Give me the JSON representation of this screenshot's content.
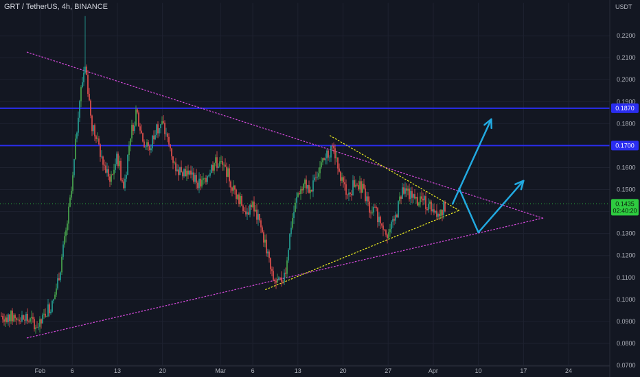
{
  "header": {
    "symbol_title": "GRT / TetherUS, 4h, BINANCE",
    "price_unit": "USDT"
  },
  "colors": {
    "background": "#131722",
    "grid": "#1e2230",
    "axis_text": "#b2b5be",
    "bull": "#26a69a",
    "bull_bright": "#4caf50",
    "bear": "#ef5350",
    "horizontal_line": "#2a2df0",
    "triangle_dots": "#d048d6",
    "wedge_dots": "#e6e620",
    "projection_arrow": "#22a9e0",
    "price_badge": "#2ecc40"
  },
  "chart_data": {
    "type": "candlestick",
    "title": "GRT / TetherUS, 4h, BINANCE",
    "ylabel": "USDT",
    "ylim": [
      0.07,
      0.235
    ],
    "y_ticks": [
      "0.0700",
      "0.0800",
      "0.0900",
      "0.1000",
      "0.1100",
      "0.1200",
      "0.1300",
      "0.1400",
      "0.1500",
      "0.1600",
      "0.1700",
      "0.1800",
      "0.1900",
      "0.2000",
      "0.2100",
      "0.2200"
    ],
    "x_tick_labels": [
      "Feb",
      "6",
      "13",
      "20",
      "Mar",
      "6",
      "13",
      "20",
      "27",
      "Apr",
      "10",
      "17",
      "24"
    ],
    "horizontal_levels": [
      {
        "value": 0.187,
        "label": "0.1870"
      },
      {
        "value": 0.17,
        "label": "0.1700"
      }
    ],
    "current_price": {
      "value": 0.1435,
      "label": "0.1435",
      "countdown": "02:40:20"
    },
    "path_points": [
      [
        "Jan 26",
        0.0925
      ],
      [
        "Jan 29",
        0.0915
      ],
      [
        "Jan 31",
        0.0895
      ],
      [
        "Feb 1",
        0.088
      ],
      [
        "Feb 2",
        0.095
      ],
      [
        "Feb 3",
        0.098
      ],
      [
        "Feb 4",
        0.112
      ],
      [
        "Feb 5",
        0.13
      ],
      [
        "Feb 6",
        0.152
      ],
      [
        "Feb 7",
        0.188
      ],
      [
        "Feb 8",
        0.208
      ],
      [
        "Feb 9",
        0.18
      ],
      [
        "Feb 10",
        0.17
      ],
      [
        "Feb 11",
        0.16
      ],
      [
        "Feb 12",
        0.155
      ],
      [
        "Feb 13",
        0.165
      ],
      [
        "Feb 14",
        0.15
      ],
      [
        "Feb 15",
        0.175
      ],
      [
        "Feb 16",
        0.185
      ],
      [
        "Feb 17",
        0.172
      ],
      [
        "Feb 18",
        0.168
      ],
      [
        "Feb 19",
        0.178
      ],
      [
        "Feb 20",
        0.18
      ],
      [
        "Feb 21",
        0.17
      ],
      [
        "Feb 22",
        0.16
      ],
      [
        "Feb 24",
        0.158
      ],
      [
        "Feb 26",
        0.152
      ],
      [
        "Feb 28",
        0.162
      ],
      [
        "Mar 1",
        0.162
      ],
      [
        "Mar 2",
        0.158
      ],
      [
        "Mar 3",
        0.15
      ],
      [
        "Mar 4",
        0.145
      ],
      [
        "Mar 5",
        0.14
      ],
      [
        "Mar 6",
        0.142
      ],
      [
        "Mar 7",
        0.135
      ],
      [
        "Mar 8",
        0.125
      ],
      [
        "Mar 9",
        0.11
      ],
      [
        "Mar 10",
        0.107
      ],
      [
        "Mar 11",
        0.112
      ],
      [
        "Mar 12",
        0.135
      ],
      [
        "Mar 13",
        0.148
      ],
      [
        "Mar 14",
        0.155
      ],
      [
        "Mar 15",
        0.148
      ],
      [
        "Mar 16",
        0.158
      ],
      [
        "Mar 17",
        0.162
      ],
      [
        "Mar 18",
        0.168
      ],
      [
        "Mar 19",
        0.165
      ],
      [
        "Mar 20",
        0.152
      ],
      [
        "Mar 21",
        0.148
      ],
      [
        "Mar 22",
        0.155
      ],
      [
        "Mar 23",
        0.15
      ],
      [
        "Mar 24",
        0.142
      ],
      [
        "Mar 25",
        0.14
      ],
      [
        "Mar 26",
        0.135
      ],
      [
        "Mar 27",
        0.13
      ],
      [
        "Mar 28",
        0.135
      ],
      [
        "Mar 29",
        0.148
      ],
      [
        "Mar 30",
        0.15
      ],
      [
        "Mar 31",
        0.145
      ],
      [
        "Apr 1",
        0.146
      ],
      [
        "Apr 2",
        0.143
      ],
      [
        "Apr 3",
        0.142
      ],
      [
        "Apr 4",
        0.139
      ],
      [
        "Apr 5",
        0.1435
      ]
    ],
    "spikes": [
      [
        "Feb 8",
        0.229
      ],
      [
        "Feb 7",
        0.178
      ],
      [
        "Feb 16",
        0.187
      ]
    ],
    "drawings": {
      "triangle_upper": [
        [
          "Jan 30",
          0.2125
        ],
        [
          "Apr 20",
          0.137
        ]
      ],
      "triangle_lower": [
        [
          "Jan 30",
          0.0825
        ],
        [
          "Apr 20",
          0.137
        ]
      ],
      "wedge_upper": [
        [
          "Mar 18",
          0.1745
        ],
        [
          "Apr 7",
          0.1405
        ]
      ],
      "wedge_lower": [
        [
          "Mar 8",
          0.1045
        ],
        [
          "Apr 7",
          0.1405
        ]
      ],
      "arrow_up": [
        [
          "Apr 6",
          0.1435
        ],
        [
          "Apr 12",
          0.182
        ]
      ],
      "arrow_dip": [
        [
          "Apr 7",
          0.1505
        ],
        [
          "Apr 10",
          0.1305
        ],
        [
          "Apr 17",
          0.154
        ]
      ]
    }
  }
}
